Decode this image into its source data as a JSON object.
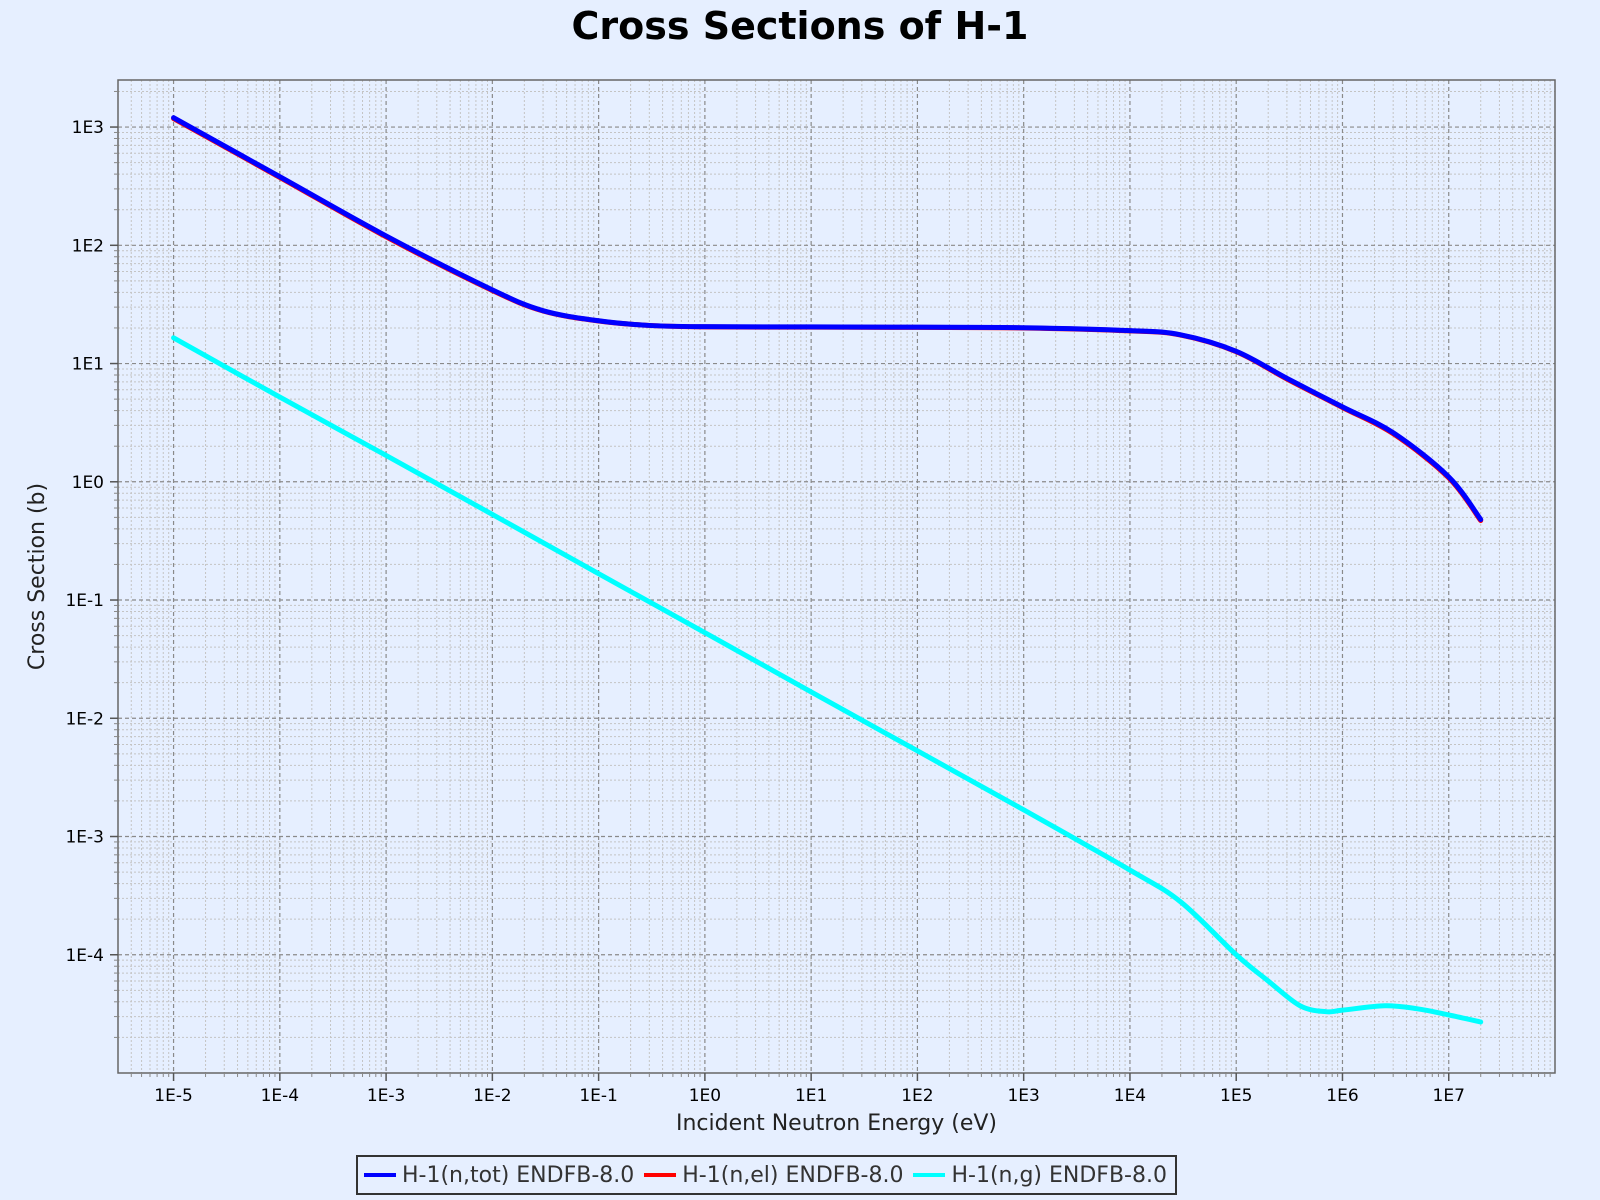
{
  "chart_data": {
    "type": "line",
    "title": "Cross Sections of H-1",
    "xlabel": "Incident Neutron Energy (eV)",
    "ylabel": "Cross Section (b)",
    "xscale": "log",
    "yscale": "log",
    "xlim": [
      3e-06,
      100000000.0
    ],
    "ylim": [
      1e-05,
      2500.0
    ],
    "grid": true,
    "legend_position": "bottom",
    "x_ticks": [
      "1E-5",
      "1E-4",
      "1E-3",
      "1E-2",
      "1E-1",
      "1E0",
      "1E1",
      "1E2",
      "1E3",
      "1E4",
      "1E5",
      "1E6",
      "1E7"
    ],
    "y_ticks": [
      "1E3",
      "1E2",
      "1E1",
      "1E0",
      "1E-1",
      "1E-2",
      "1E-3",
      "1E-4"
    ],
    "series": [
      {
        "name": "H-1(n,tot) ENDFB-8.0",
        "color": "#0000ff",
        "x": [
          1e-05,
          0.0001,
          0.001,
          0.01,
          0.03,
          0.1,
          0.3,
          1,
          10,
          100,
          1000,
          10000,
          30000,
          100000,
          300000,
          1000000.0,
          3000000.0,
          10000000.0,
          20000000.0
        ],
        "y": [
          1200,
          380,
          120,
          42,
          28,
          23,
          21,
          20.5,
          20.4,
          20.3,
          20.1,
          19,
          17.5,
          12.7,
          7.5,
          4.3,
          2.6,
          1.1,
          0.48
        ]
      },
      {
        "name": "H-1(n,el) ENDFB-8.0",
        "color": "#ff0000",
        "x": [
          1e-05,
          0.0001,
          0.001,
          0.01,
          0.03,
          0.1,
          0.3,
          1,
          10,
          100,
          1000,
          10000,
          30000,
          100000,
          300000,
          1000000.0,
          3000000.0,
          10000000.0,
          20000000.0
        ],
        "y": [
          1180,
          375,
          118,
          41.5,
          27.8,
          22.9,
          21,
          20.4,
          20.3,
          20.2,
          20,
          18.9,
          17.4,
          12.6,
          7.4,
          4.25,
          2.55,
          1.08,
          0.47
        ]
      },
      {
        "name": "H-1(n,g) ENDFB-8.0",
        "color": "#00ffff",
        "x": [
          1e-05,
          0.0001,
          0.001,
          0.01,
          0.1,
          1,
          10,
          100,
          1000,
          10000,
          30000,
          100000,
          200000,
          400000,
          700000,
          1000000.0,
          2500000.0,
          5000000.0,
          10000000.0,
          20000000.0
        ],
        "y": [
          16.5,
          5.2,
          1.67,
          0.53,
          0.167,
          0.053,
          0.0167,
          0.0053,
          0.00168,
          0.00052,
          0.00028,
          0.0001,
          6e-05,
          3.7e-05,
          3.3e-05,
          3.4e-05,
          3.7e-05,
          3.5e-05,
          3.1e-05,
          2.7e-05
        ]
      }
    ]
  }
}
